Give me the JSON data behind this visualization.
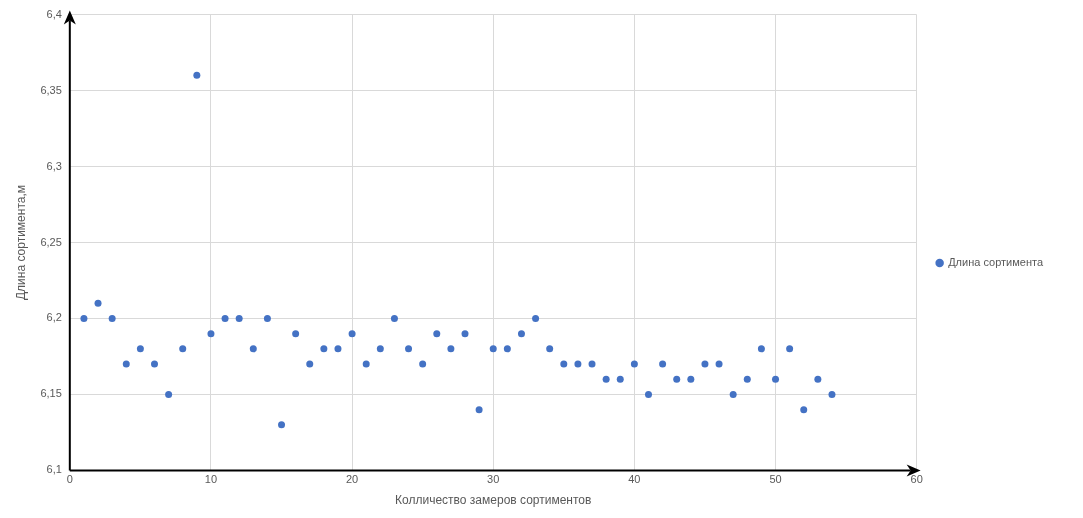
{
  "chart_data": {
    "type": "scatter",
    "xlabel": "Колличество замеров сортиментов",
    "ylabel": "Длина сортимента,м",
    "x": [
      1,
      2,
      3,
      4,
      5,
      6,
      7,
      8,
      9,
      10,
      11,
      12,
      13,
      14,
      15,
      16,
      17,
      18,
      19,
      20,
      21,
      22,
      23,
      24,
      25,
      26,
      27,
      28,
      29,
      30,
      31,
      32,
      33,
      34,
      35,
      36,
      37,
      38,
      39,
      40,
      41,
      42,
      43,
      44,
      45,
      46,
      47,
      48,
      49,
      50,
      51,
      52,
      53,
      54
    ],
    "series": [
      {
        "name": "Длина сортимента",
        "color": "#4472c4",
        "values": [
          6.2,
          6.21,
          6.2,
          6.17,
          6.18,
          6.17,
          6.15,
          6.18,
          6.36,
          6.19,
          6.2,
          6.2,
          6.18,
          6.2,
          6.13,
          6.19,
          6.17,
          6.18,
          6.18,
          6.19,
          6.17,
          6.18,
          6.2,
          6.18,
          6.17,
          6.19,
          6.18,
          6.19,
          6.14,
          6.18,
          6.18,
          6.19,
          6.2,
          6.18,
          6.17,
          6.17,
          6.17,
          6.16,
          6.16,
          6.17,
          6.15,
          6.17,
          6.16,
          6.16,
          6.17,
          6.17,
          6.15,
          6.16,
          6.18,
          6.16,
          6.18,
          6.14,
          6.16,
          6.15
        ]
      }
    ],
    "xlim": [
      0,
      60
    ],
    "xticks": [
      0,
      10,
      20,
      30,
      40,
      50,
      60
    ],
    "ylim": [
      6.1,
      6.4
    ],
    "yticks": [
      {
        "value": 6.1,
        "label": "6,1"
      },
      {
        "value": 6.15,
        "label": "6,15"
      },
      {
        "value": 6.2,
        "label": "6,2"
      },
      {
        "value": 6.25,
        "label": "6,25"
      },
      {
        "value": 6.3,
        "label": "6,3"
      },
      {
        "value": 6.35,
        "label": "6,35"
      },
      {
        "value": 6.4,
        "label": "6,4"
      }
    ],
    "grid": true,
    "legend": "right",
    "marker": "circle"
  }
}
